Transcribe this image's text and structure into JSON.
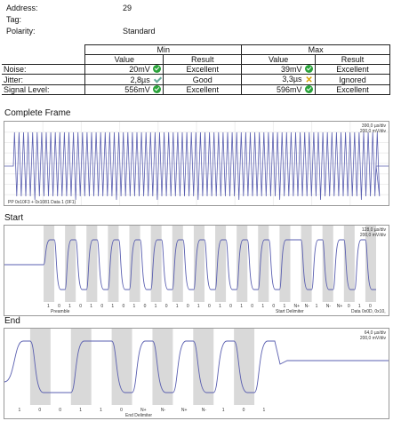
{
  "info": {
    "address_label": "Address:",
    "address_value": "29",
    "tag_label": "Tag:",
    "tag_value": "",
    "polarity_label": "Polarity:",
    "polarity_value": "Standard"
  },
  "table": {
    "min_header": "Min",
    "max_header": "Max",
    "value_header": "Value",
    "result_header": "Result",
    "rows": [
      {
        "label": "Noise:",
        "min_value": "20mV",
        "min_icon": "green-check-icon",
        "min_result": "Excellent",
        "max_value": "39mV",
        "max_icon": "green-check-icon",
        "max_result": "Excellent"
      },
      {
        "label": "Jitter:",
        "min_value": "2,8µs",
        "min_icon": "checkmark-icon",
        "min_result": "Good",
        "max_value": "3,3µs",
        "max_icon": "yellow-x-icon",
        "max_result": "Ignored"
      },
      {
        "label": "Signal Level:",
        "min_value": "556mV",
        "min_icon": "green-check-icon",
        "min_result": "Excellent",
        "max_value": "596mV",
        "max_icon": "green-check-icon",
        "max_result": "Excellent"
      }
    ]
  },
  "sections": {
    "complete": {
      "title": "Complete Frame",
      "scale1": "390,0 µs/div",
      "scale2": "200,0 mV/div",
      "footer": "PP 0x10F3 + 0x1081      Data 1 (0F1)"
    },
    "start": {
      "title": "Start",
      "scale1": "128,0 µs/div",
      "scale2": "200,0 mV/div",
      "bits": [
        "1",
        "0",
        "1",
        "0",
        "1",
        "0",
        "1",
        "0",
        "1",
        "0",
        "1",
        "0",
        "1",
        "0",
        "1",
        "0",
        "1",
        "0",
        "1",
        "0",
        "1",
        "0",
        "1",
        "N+",
        "N-",
        "1",
        "N-",
        "N+",
        "0",
        "1",
        "0"
      ],
      "preamble": "Preamble",
      "start_delim": "Start Delimiter",
      "data": "Data 0x0D, 0x10,"
    },
    "end": {
      "title": "End",
      "scale1": "64,0 µs/div",
      "scale2": "200,0 mV/div",
      "bits": [
        "1",
        "0",
        "0",
        "1",
        "1",
        "0",
        "N+",
        "N-",
        "N+",
        "N-",
        "1",
        "0",
        "1"
      ],
      "end_delim": "End Delimiter"
    }
  },
  "colors": {
    "trace": "#5a5fb0",
    "band": "#d9d9d9",
    "ok": "#2aa33a",
    "warn": "#d8a400"
  }
}
